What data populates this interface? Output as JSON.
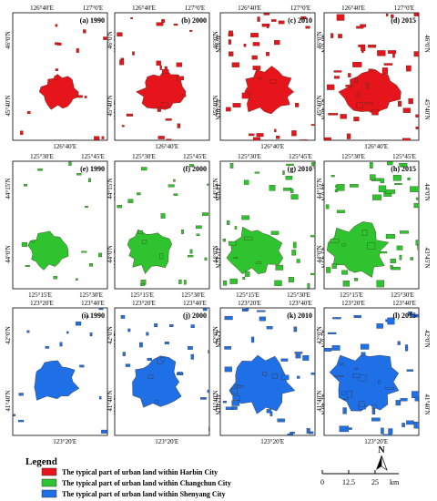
{
  "figure": {
    "rows": [
      {
        "city": "Harbin",
        "color": "#e6141b",
        "top_ticks": [
          "126°40'E",
          "127°0'E"
        ],
        "bottom_ticks": [
          "126°40'E"
        ],
        "left_ticks": [
          "46°0'N",
          "45°40'N"
        ],
        "right_ticks": [
          "46°0'N",
          "45°40'N"
        ],
        "panels": [
          {
            "label": "(a) 1990"
          },
          {
            "label": "(b) 2000"
          },
          {
            "label": "(c) 2010"
          },
          {
            "label": "(d) 2015"
          }
        ]
      },
      {
        "city": "Changchun",
        "color": "#2fc32f",
        "top_ticks": [
          "125°30'E",
          "125°45'E"
        ],
        "bottom_ticks": [
          "125°15'E",
          "125°30'E"
        ],
        "left_ticks": [
          "44°15'N",
          "44°0'N"
        ],
        "right_ticks": [
          "44°0'N",
          "43°45'N"
        ],
        "panels": [
          {
            "label": "(e) 1990"
          },
          {
            "label": "(f) 2000"
          },
          {
            "label": "(g) 2010"
          },
          {
            "label": "(h) 2015"
          }
        ]
      },
      {
        "city": "Shenyang",
        "color": "#1f6fe6",
        "top_ticks": [
          "123°20'E",
          "123°40'E"
        ],
        "bottom_ticks": [
          "123°20'E"
        ],
        "left_ticks": [
          "42°0'N",
          "41°40'N"
        ],
        "right_ticks": [
          "42°0'N",
          "41°40'N"
        ],
        "panels": [
          {
            "label": "(i) 1990"
          },
          {
            "label": "(j) 2000"
          },
          {
            "label": "(k) 2010"
          },
          {
            "label": "(l) 2015"
          }
        ]
      }
    ]
  },
  "legend": {
    "title": "Legend",
    "items": [
      {
        "label": "The typical part of urban land within Harbin City",
        "color": "#e6141b"
      },
      {
        "label": "The typical part of urban land within Changchun City",
        "color": "#2fc32f"
      },
      {
        "label": "The typical part of urban land within Shenyang City",
        "color": "#1f6fe6"
      }
    ]
  },
  "north_arrow": {
    "label": "N"
  },
  "scale_bar": {
    "ticks": [
      "0",
      "12.5",
      "25"
    ],
    "unit": "km"
  }
}
